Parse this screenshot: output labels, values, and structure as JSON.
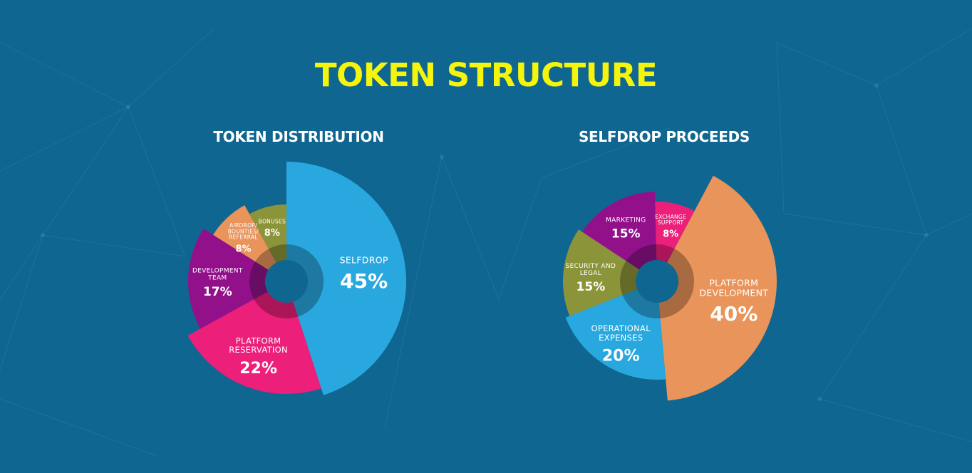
{
  "page": {
    "title": "TOKEN STRUCTURE"
  },
  "colors": {
    "background": "#0f6690",
    "title": "#f4f40c"
  },
  "chart_data": [
    {
      "type": "pie",
      "title": "TOKEN DISTRIBUTION",
      "slices": [
        {
          "label": [
            "SELFDROP"
          ],
          "value": 45,
          "value_label": "45%",
          "color": "#29a8e0"
        },
        {
          "label": [
            "PLATFORM",
            "RESERVATION"
          ],
          "value": 22,
          "value_label": "22%",
          "color": "#ec1f7a"
        },
        {
          "label": [
            "DEVELOPMENT",
            "TEAM"
          ],
          "value": 17,
          "value_label": "17%",
          "color": "#92118a"
        },
        {
          "label": [
            "AIRDROP/",
            "BOUNTIES/",
            "REFERRAL"
          ],
          "value": 8,
          "value_label": "8%",
          "color": "#e8945a"
        },
        {
          "label": [
            "BONUSES"
          ],
          "value": 8,
          "value_label": "8%",
          "color": "#8c943a"
        }
      ]
    },
    {
      "type": "pie",
      "title": "SELFDROP PROCEEDS",
      "slices": [
        {
          "label": [
            "PLATFORM",
            "DEVELOPMENT"
          ],
          "value": 40,
          "value_label": "40%",
          "color": "#e8945a"
        },
        {
          "label": [
            "OPERATIONAL",
            "EXPENSES"
          ],
          "value": 20,
          "value_label": "20%",
          "color": "#29a8e0"
        },
        {
          "label": [
            "SECURITY AND",
            "LEGAL"
          ],
          "value": 15,
          "value_label": "15%",
          "color": "#8c943a"
        },
        {
          "label": [
            "MARKETING"
          ],
          "value": 15,
          "value_label": "15%",
          "color": "#92118a"
        },
        {
          "label": [
            "EXCHANGE",
            "SUPPORT"
          ],
          "value": 8,
          "value_label": "8%",
          "color": "#ec1f7a"
        }
      ]
    }
  ]
}
